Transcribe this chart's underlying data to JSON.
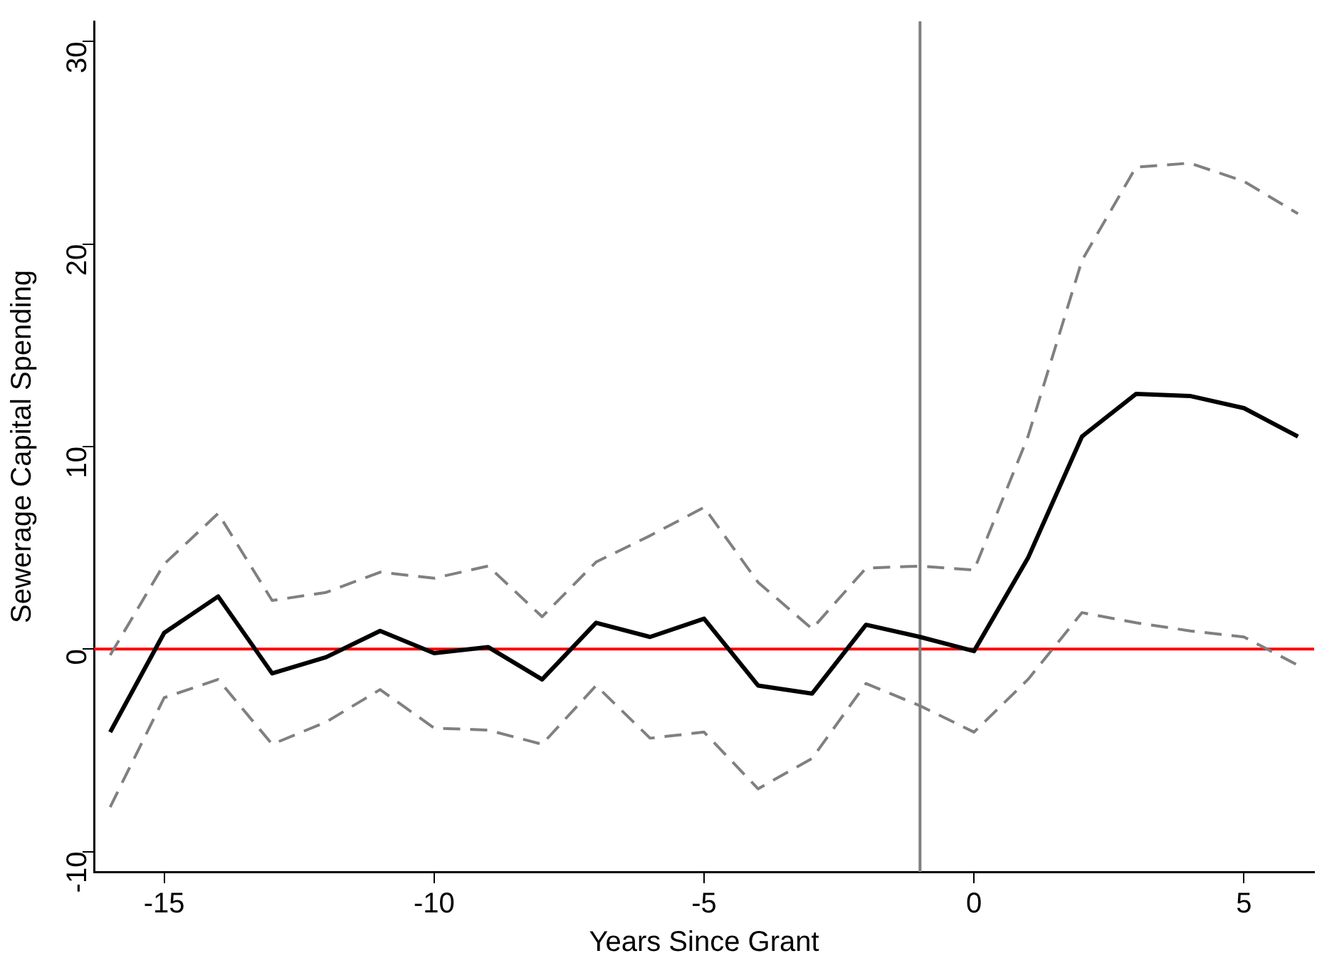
{
  "chart_data": {
    "type": "line",
    "xlabel": "Years Since Grant",
    "ylabel": "Sewerage Capital Spending",
    "x": [
      -16,
      -15,
      -14,
      -13,
      -12,
      -11,
      -10,
      -9,
      -8,
      -7,
      -6,
      -5,
      -4,
      -3,
      -2,
      -1,
      0,
      1,
      2,
      3,
      4,
      5,
      6
    ],
    "series": [
      {
        "color": "#000000",
        "line_style": "solid",
        "values": [
          -4.1,
          0.8,
          2.6,
          -1.2,
          -0.4,
          0.9,
          -0.2,
          0.1,
          -1.5,
          1.3,
          0.6,
          1.5,
          -1.8,
          -2.2,
          1.2,
          0.6,
          -0.1,
          4.5,
          10.5,
          12.6,
          12.5,
          11.9,
          10.5
        ]
      },
      {
        "color": "#808080",
        "line_style": "dashed",
        "values": [
          -0.3,
          4.2,
          6.7,
          2.4,
          2.8,
          3.8,
          3.5,
          4.1,
          1.6,
          4.3,
          5.6,
          7.0,
          3.3,
          1.0,
          4.0,
          4.1,
          3.9,
          10.5,
          19.2,
          23.8,
          24.0,
          23.1,
          21.5
        ]
      },
      {
        "color": "#808080",
        "line_style": "dashed",
        "values": [
          -7.8,
          -2.4,
          -1.5,
          -4.7,
          -3.6,
          -2.0,
          -3.9,
          -4.0,
          -4.7,
          -1.8,
          -4.4,
          -4.1,
          -6.9,
          -5.4,
          -1.7,
          -2.8,
          -4.1,
          -1.5,
          1.8,
          1.3,
          0.9,
          0.6,
          -0.8
        ]
      }
    ],
    "xlim": [
      -16.3,
      6.3
    ],
    "xticks": [
      -15,
      -10,
      -5,
      0,
      5
    ],
    "ylim": [
      -11,
      31
    ],
    "yticks": [
      -10,
      0,
      10,
      20,
      30
    ],
    "ref_lines": [
      {
        "axis": "y",
        "value": 0,
        "color": "#ff0000"
      },
      {
        "axis": "x",
        "value": -1,
        "color": "#808080"
      }
    ],
    "grid": false,
    "legend": false,
    "marker": "none"
  }
}
